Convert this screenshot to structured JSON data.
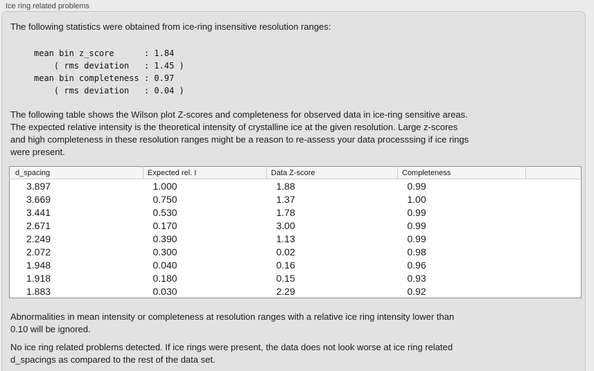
{
  "panel": {
    "title": "Ice ring related problems"
  },
  "intro": "The following statistics were obtained from ice-ring insensitive resolution ranges:",
  "stats_block": "mean bin z_score      : 1.84\n    ( rms deviation   : 1.45 )\nmean bin completeness : 0.97\n    ( rms deviation   : 0.04 )",
  "stats": {
    "mean_bin_z_score": "1.84",
    "z_score_rms_deviation": "1.45",
    "mean_bin_completeness": "0.97",
    "completeness_rms_deviation": "0.04"
  },
  "table_intro": "The following table shows the Wilson plot Z-scores and completeness for observed data in ice-ring sensitive areas.\nThe expected relative intensity is the theoretical intensity of crystalline ice at the given resolution. Large z-scores\nand high completeness in these resolution ranges might be a reason to re-assess your data processsing if ice rings\nwere present.",
  "table": {
    "columns": [
      "d_spacing",
      "Expected rel. I",
      "Data Z-score",
      "Completeness"
    ],
    "rows": [
      [
        "3.897",
        "1.000",
        "1.88",
        "0.99"
      ],
      [
        "3.669",
        "0.750",
        "1.37",
        "1.00"
      ],
      [
        "3.441",
        "0.530",
        "1.78",
        "0.99"
      ],
      [
        "2.671",
        "0.170",
        "3.00",
        "0.99"
      ],
      [
        "2.249",
        "0.390",
        "1.13",
        "0.99"
      ],
      [
        "2.072",
        "0.300",
        "0.02",
        "0.98"
      ],
      [
        "1.948",
        "0.040",
        "0.16",
        "0.96"
      ],
      [
        "1.918",
        "0.180",
        "0.15",
        "0.93"
      ],
      [
        "1.883",
        "0.030",
        "2.29",
        "0.92"
      ]
    ]
  },
  "note_ignore": "Abnormalities in mean intensity or completeness at resolution ranges with a relative ice ring intensity lower than\n0.10 will be ignored.",
  "conclusion": "No ice ring related problems detected. If ice rings were present, the data does not look worse at ice ring related\nd_spacings as compared to the rest of the data set.",
  "colors": {
    "outer_background": "#ececec",
    "panel_background": "#e2e2e2",
    "panel_border": "#c5c5c5",
    "table_border": "#909090",
    "table_header_background": "#f5f5f5",
    "text": "#1a1a1a"
  }
}
